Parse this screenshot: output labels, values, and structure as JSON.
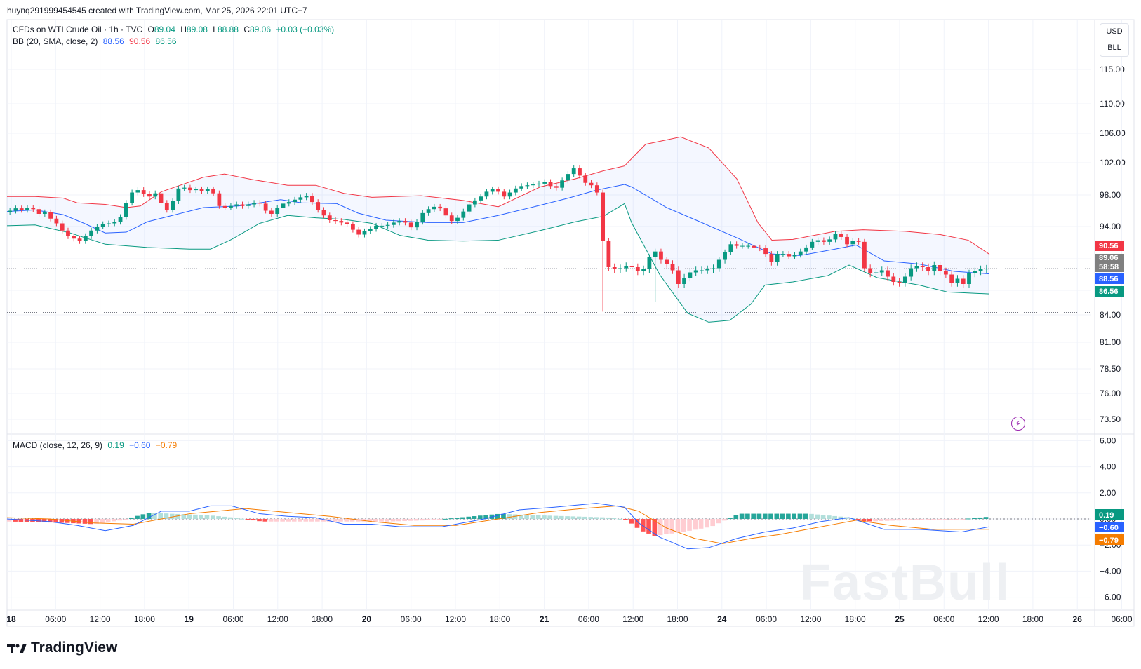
{
  "attribution": "huynq291999454545 created with TradingView.com, Mar 25, 2026 22:01 UTC+7",
  "legend": {
    "symbol": "CFDs on WTI Crude Oil · 1h · TVC",
    "o_label": "O",
    "o": "89.04",
    "h_label": "H",
    "h": "89.08",
    "l_label": "L",
    "l": "88.88",
    "c_label": "C",
    "c": "89.06",
    "change": "+0.03 (+0.03%)",
    "bb_label": "BB (20, SMA, close, 2)",
    "bb_basis": "88.56",
    "bb_upper": "90.56",
    "bb_lower": "86.56",
    "macd_label": "MACD (close, 12, 26, 9)",
    "macd_hist": "0.19",
    "macd_line": "−0.60",
    "macd_signal": "−0.79"
  },
  "currency": {
    "top": "USD",
    "bottom": "BLL"
  },
  "brand": "TradingView",
  "watermark": "FastBull",
  "colors": {
    "up": "#089981",
    "down": "#f23645",
    "basis": "#2962ff",
    "upper": "#f23645",
    "lower": "#089981",
    "signal": "#f57c00",
    "fill": "#2962ff"
  },
  "chart_data": [
    {
      "type": "candlestick",
      "y_ticks": [
        "115.00",
        "110.00",
        "106.00",
        "102.00",
        "98.00",
        "94.00",
        "90.00",
        "87.00",
        "84.00",
        "81.00",
        "78.50",
        "76.00",
        "73.50"
      ],
      "x_ticks": [
        "18",
        "06:00",
        "12:00",
        "18:00",
        "19",
        "06:00",
        "12:00",
        "18:00",
        "20",
        "06:00",
        "12:00",
        "18:00",
        "21",
        "06:00",
        "12:00",
        "18:00",
        "24",
        "06:00",
        "12:00",
        "18:00",
        "25",
        "06:00",
        "12:00",
        "18:00",
        "26",
        "06:00"
      ],
      "price_labels": [
        {
          "text": "90.56",
          "color": "#f23645"
        },
        {
          "text": "89.06",
          "color": "#808080"
        },
        {
          "text": "58:58",
          "color": "#808080"
        },
        {
          "text": "88.56",
          "color": "#2962ff"
        },
        {
          "text": "86.56",
          "color": "#089981"
        }
      ],
      "last_price": 89.06,
      "dotted_levels": [
        101.7,
        84.3
      ],
      "closes": [
        96.0,
        96.3,
        96.1,
        96.4,
        96.2,
        95.6,
        95.8,
        95.0,
        94.4,
        93.5,
        92.8,
        92.5,
        92.2,
        92.8,
        93.5,
        94.0,
        94.3,
        94.4,
        94.6,
        95.2,
        97.0,
        98.3,
        98.6,
        98.1,
        97.8,
        98.2,
        97.0,
        96.1,
        97.2,
        98.8,
        98.9,
        98.6,
        98.7,
        98.5,
        98.7,
        98.2,
        96.6,
        96.4,
        96.6,
        96.8,
        96.6,
        96.8,
        97.0,
        96.9,
        96.0,
        95.6,
        96.4,
        96.9,
        97.1,
        97.4,
        97.7,
        97.9,
        97.1,
        96.1,
        95.4,
        94.8,
        94.7,
        94.5,
        94.3,
        93.6,
        93.0,
        93.4,
        93.7,
        94.1,
        94.1,
        94.2,
        94.5,
        94.7,
        94.5,
        93.9,
        94.6,
        95.7,
        96.2,
        96.5,
        96.3,
        95.4,
        94.7,
        95.1,
        95.9,
        96.8,
        97.3,
        97.8,
        98.4,
        98.7,
        98.4,
        97.8,
        98.3,
        98.8,
        99.1,
        99.2,
        99.3,
        99.4,
        99.6,
        99.1,
        98.9,
        99.8,
        100.6,
        101.3,
        100.4,
        99.5,
        99.2,
        98.3,
        92.2,
        89.2,
        89.0,
        89.1,
        89.3,
        89.2,
        88.8,
        89.0,
        90.2,
        90.9,
        89.9,
        89.5,
        88.9,
        87.6,
        88.2,
        88.7,
        88.9,
        88.9,
        89.0,
        89.1,
        89.9,
        90.8,
        91.8,
        91.6,
        91.6,
        91.6,
        91.4,
        91.3,
        90.6,
        89.7,
        90.6,
        90.6,
        90.3,
        90.5,
        90.9,
        91.4,
        92.1,
        92.3,
        92.1,
        92.4,
        93.1,
        92.7,
        91.8,
        92.2,
        92.1,
        89.1,
        88.6,
        88.7,
        88.9,
        88.3,
        87.8,
        87.7,
        88.3,
        89.1,
        89.3,
        89.2,
        88.8,
        89.4,
        88.8,
        88.5,
        87.7,
        88.1,
        87.6,
        88.6,
        88.8,
        89.0,
        89.06
      ],
      "bb_upper_pts": [
        [
          0,
          97.8
        ],
        [
          40,
          97.8
        ],
        [
          80,
          97.6
        ],
        [
          100,
          97.0
        ],
        [
          140,
          96.8
        ],
        [
          170,
          96.4
        ],
        [
          190,
          96.6
        ],
        [
          220,
          98.4
        ],
        [
          280,
          100.2
        ],
        [
          310,
          100.6
        ],
        [
          350,
          99.9
        ],
        [
          400,
          99.2
        ],
        [
          440,
          99.2
        ],
        [
          480,
          98.2
        ],
        [
          520,
          97.7
        ],
        [
          590,
          97.9
        ],
        [
          650,
          97.3
        ],
        [
          700,
          96.5
        ],
        [
          760,
          99.0
        ],
        [
          810,
          100.0
        ],
        [
          850,
          101.0
        ],
        [
          880,
          101.6
        ],
        [
          910,
          104.5
        ],
        [
          960,
          105.5
        ],
        [
          1000,
          104.0
        ],
        [
          1040,
          100.0
        ],
        [
          1070,
          94.5
        ],
        [
          1090,
          92.3
        ],
        [
          1120,
          92.4
        ],
        [
          1180,
          93.4
        ],
        [
          1220,
          93.6
        ],
        [
          1280,
          93.4
        ],
        [
          1330,
          93.0
        ],
        [
          1370,
          92.3
        ],
        [
          1400,
          90.56
        ]
      ],
      "bb_basis_pts": [
        [
          0,
          95.9
        ],
        [
          40,
          96.1
        ],
        [
          80,
          95.5
        ],
        [
          110,
          94.4
        ],
        [
          140,
          93.2
        ],
        [
          170,
          93.3
        ],
        [
          200,
          94.6
        ],
        [
          240,
          95.5
        ],
        [
          280,
          96.4
        ],
        [
          330,
          96.6
        ],
        [
          390,
          97.4
        ],
        [
          420,
          97.0
        ],
        [
          470,
          96.9
        ],
        [
          500,
          95.7
        ],
        [
          540,
          94.8
        ],
        [
          600,
          94.5
        ],
        [
          650,
          94.5
        ],
        [
          700,
          95.4
        ],
        [
          760,
          96.7
        ],
        [
          800,
          97.6
        ],
        [
          840,
          98.6
        ],
        [
          880,
          99.3
        ],
        [
          890,
          99.0
        ],
        [
          940,
          96.4
        ],
        [
          990,
          94.5
        ],
        [
          1040,
          92.6
        ],
        [
          1090,
          90.6
        ],
        [
          1130,
          90.4
        ],
        [
          1180,
          91.2
        ],
        [
          1210,
          91.7
        ],
        [
          1250,
          89.8
        ],
        [
          1300,
          89.5
        ],
        [
          1350,
          88.8
        ],
        [
          1400,
          88.56
        ]
      ],
      "bb_lower_pts": [
        [
          0,
          94.1
        ],
        [
          40,
          94.2
        ],
        [
          90,
          93.2
        ],
        [
          140,
          91.8
        ],
        [
          200,
          91.4
        ],
        [
          260,
          91.2
        ],
        [
          290,
          91.2
        ],
        [
          320,
          92.4
        ],
        [
          360,
          94.4
        ],
        [
          400,
          95.4
        ],
        [
          440,
          95.1
        ],
        [
          480,
          94.9
        ],
        [
          520,
          94.4
        ],
        [
          560,
          92.9
        ],
        [
          600,
          92.3
        ],
        [
          650,
          92.2
        ],
        [
          700,
          92.3
        ],
        [
          760,
          93.5
        ],
        [
          810,
          94.6
        ],
        [
          850,
          95.3
        ],
        [
          880,
          96.9
        ],
        [
          890,
          94.5
        ],
        [
          930,
          88.5
        ],
        [
          970,
          84.2
        ],
        [
          1000,
          83.2
        ],
        [
          1030,
          83.4
        ],
        [
          1060,
          85.3
        ],
        [
          1080,
          87.5
        ],
        [
          1120,
          87.8
        ],
        [
          1170,
          88.4
        ],
        [
          1200,
          89.4
        ],
        [
          1240,
          88.2
        ],
        [
          1300,
          87.5
        ],
        [
          1340,
          86.8
        ],
        [
          1400,
          86.56
        ]
      ]
    },
    {
      "type": "macd",
      "y_ticks": [
        "6.00",
        "4.00",
        "2.00",
        "0.00",
        "−2.00",
        "−4.00",
        "−6.00"
      ],
      "labels": [
        {
          "text": "0.19",
          "color": "#089981"
        },
        {
          "text": "−0.60",
          "color": "#2962ff"
        },
        {
          "text": "−0.79",
          "color": "#f57c00"
        }
      ],
      "macd_pts": [
        [
          0,
          0.0
        ],
        [
          60,
          -0.2
        ],
        [
          100,
          -0.5
        ],
        [
          140,
          -0.9
        ],
        [
          180,
          -0.5
        ],
        [
          220,
          0.6
        ],
        [
          260,
          0.6
        ],
        [
          290,
          1.0
        ],
        [
          320,
          1.0
        ],
        [
          360,
          0.4
        ],
        [
          400,
          0.2
        ],
        [
          440,
          0.1
        ],
        [
          480,
          -0.4
        ],
        [
          520,
          -0.4
        ],
        [
          560,
          -0.6
        ],
        [
          620,
          -0.6
        ],
        [
          680,
          0.0
        ],
        [
          730,
          0.7
        ],
        [
          780,
          0.9
        ],
        [
          840,
          1.2
        ],
        [
          880,
          0.9
        ],
        [
          900,
          -0.3
        ],
        [
          930,
          -1.4
        ],
        [
          970,
          -2.3
        ],
        [
          1000,
          -2.2
        ],
        [
          1040,
          -1.5
        ],
        [
          1080,
          -1.0
        ],
        [
          1120,
          -0.7
        ],
        [
          1160,
          -0.2
        ],
        [
          1200,
          0.1
        ],
        [
          1250,
          -0.8
        ],
        [
          1300,
          -0.8
        ],
        [
          1360,
          -1.0
        ],
        [
          1400,
          -0.6
        ]
      ],
      "signal_pts": [
        [
          0,
          0.1
        ],
        [
          60,
          0.0
        ],
        [
          120,
          -0.3
        ],
        [
          180,
          -0.4
        ],
        [
          220,
          0.0
        ],
        [
          260,
          0.4
        ],
        [
          300,
          0.6
        ],
        [
          340,
          0.8
        ],
        [
          400,
          0.5
        ],
        [
          460,
          0.2
        ],
        [
          520,
          -0.2
        ],
        [
          580,
          -0.5
        ],
        [
          640,
          -0.5
        ],
        [
          700,
          0.0
        ],
        [
          760,
          0.5
        ],
        [
          820,
          0.8
        ],
        [
          870,
          1.0
        ],
        [
          900,
          0.6
        ],
        [
          940,
          -0.7
        ],
        [
          980,
          -1.5
        ],
        [
          1020,
          -1.9
        ],
        [
          1060,
          -1.5
        ],
        [
          1100,
          -1.2
        ],
        [
          1140,
          -0.8
        ],
        [
          1180,
          -0.4
        ],
        [
          1210,
          -0.1
        ],
        [
          1260,
          -0.5
        ],
        [
          1320,
          -0.8
        ],
        [
          1400,
          -0.79
        ]
      ],
      "hist_pts": [
        [
          0,
          -0.2
        ],
        [
          80,
          -0.3
        ],
        [
          120,
          -0.4
        ],
        [
          160,
          -0.1
        ],
        [
          200,
          0.5
        ],
        [
          230,
          0.4
        ],
        [
          280,
          0.3
        ],
        [
          320,
          0.1
        ],
        [
          360,
          -0.2
        ],
        [
          440,
          -0.2
        ],
        [
          480,
          -0.2
        ],
        [
          540,
          -0.2
        ],
        [
          600,
          -0.1
        ],
        [
          640,
          0.1
        ],
        [
          700,
          0.4
        ],
        [
          740,
          0.3
        ],
        [
          800,
          0.2
        ],
        [
          860,
          0.1
        ],
        [
          880,
          -0.1
        ],
        [
          900,
          -0.9
        ],
        [
          920,
          -1.3
        ],
        [
          960,
          -1.0
        ],
        [
          1000,
          -0.6
        ],
        [
          1020,
          -0.1
        ],
        [
          1040,
          0.4
        ],
        [
          1080,
          0.4
        ],
        [
          1140,
          0.4
        ],
        [
          1180,
          0.2
        ],
        [
          1200,
          0.1
        ],
        [
          1220,
          -0.2
        ],
        [
          1280,
          -0.1
        ],
        [
          1340,
          -0.1
        ],
        [
          1400,
          0.19
        ]
      ]
    }
  ]
}
